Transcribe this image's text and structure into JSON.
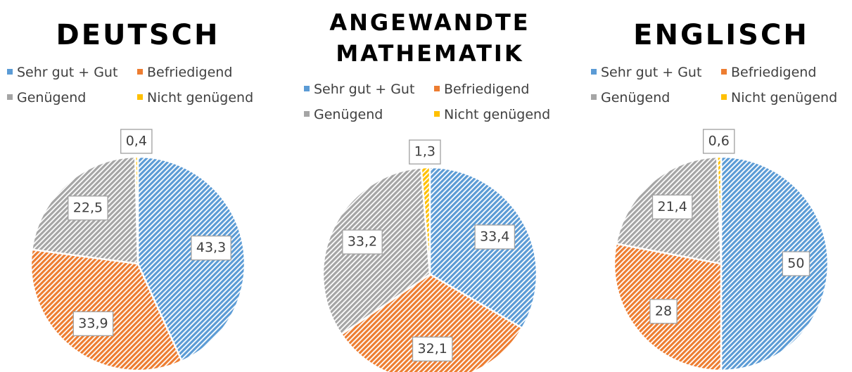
{
  "chart_data": [
    {
      "type": "pie",
      "title": "DEUTSCH",
      "categories": [
        "Sehr gut + Gut",
        "Befriedigend",
        "Genügend",
        "Nicht genügend"
      ],
      "values": [
        43.3,
        33.9,
        22.5,
        0.4
      ],
      "value_labels": [
        "43,3",
        "33,9",
        "22,5",
        "0,4"
      ],
      "colors": [
        "#5b9bd5",
        "#ed7d31",
        "#a5a5a5",
        "#ffc000"
      ],
      "legend": "top"
    },
    {
      "type": "pie",
      "title": "ANGEWANDTE MATHEMATIK",
      "categories": [
        "Sehr gut + Gut",
        "Befriedigend",
        "Genügend",
        "Nicht genügend"
      ],
      "values": [
        33.4,
        32.1,
        33.2,
        1.3
      ],
      "value_labels": [
        "33,4",
        "32,1",
        "33,2",
        "1,3"
      ],
      "colors": [
        "#5b9bd5",
        "#ed7d31",
        "#a5a5a5",
        "#ffc000"
      ],
      "legend": "top"
    },
    {
      "type": "pie",
      "title": "ENGLISCH",
      "categories": [
        "Sehr gut + Gut",
        "Befriedigend",
        "Genügend",
        "Nicht genügend"
      ],
      "values": [
        50,
        28,
        21.4,
        0.6
      ],
      "value_labels": [
        "50",
        "28",
        "21,4",
        "0,6"
      ],
      "colors": [
        "#5b9bd5",
        "#ed7d31",
        "#a5a5a5",
        "#ffc000"
      ],
      "legend": "top"
    }
  ]
}
